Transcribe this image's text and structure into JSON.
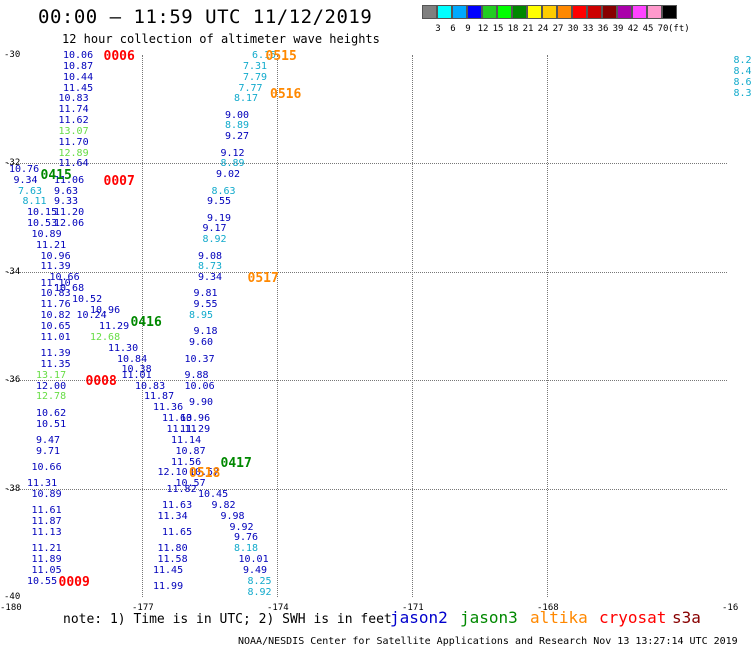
{
  "title": "00:00 – 11:59 UTC 11/12/2019",
  "subtitle": "12 hour collection of altimeter wave heights",
  "colorbar": {
    "colors": [
      "#808080",
      "#00ffff",
      "#00aaff",
      "#0000ff",
      "#22cc22",
      "#00ff00",
      "#008800",
      "#ffff00",
      "#ffcc00",
      "#ff8800",
      "#ff0000",
      "#cc0000",
      "#880000",
      "#aa00aa",
      "#ff44ff",
      "#ff99cc",
      "#000000"
    ],
    "labels": [
      "3",
      "6",
      "9",
      "12",
      "15",
      "18",
      "21",
      "24",
      "27",
      "30",
      "33",
      "36",
      "39",
      "42",
      "45",
      "70",
      "(ft)"
    ]
  },
  "axes": {
    "lat_ticks": [
      "-30",
      "-32",
      "-34",
      "-36",
      "-38",
      "-40"
    ],
    "lon_ticks": [
      "-180",
      "-177",
      "-174",
      "-171",
      "-168",
      "-16"
    ]
  },
  "note": "note:  1) Time is in UTC;  2) SWH is in feet",
  "legend": [
    {
      "name": "jason2",
      "color": "#0000cc"
    },
    {
      "name": "jason3",
      "color": "#008800"
    },
    {
      "name": "altika",
      "color": "#ff8800"
    },
    {
      "name": "cryosat",
      "color": "#ff0000"
    },
    {
      "name": "s3a",
      "color": "#880000"
    }
  ],
  "credit": "NOAA/NESDIS Center for Satellite Applications and Research    Nov 13 13:27:14 UTC 2019",
  "observations": [
    {
      "lon": -178.8,
      "lat": -30.0,
      "v": "10.06"
    },
    {
      "lon": -178.8,
      "lat": -30.2,
      "v": "10.87"
    },
    {
      "lon": -178.8,
      "lat": -30.4,
      "v": "10.44"
    },
    {
      "lon": -178.8,
      "lat": -30.6,
      "v": "11.45"
    },
    {
      "lon": -178.9,
      "lat": -30.8,
      "v": "10.83"
    },
    {
      "lon": -178.9,
      "lat": -31.0,
      "v": "11.74"
    },
    {
      "lon": -178.9,
      "lat": -31.2,
      "v": "11.62"
    },
    {
      "lon": -178.9,
      "lat": -31.4,
      "v": "13.07"
    },
    {
      "lon": -178.9,
      "lat": -31.6,
      "v": "11.70"
    },
    {
      "lon": -178.9,
      "lat": -31.8,
      "v": "12.89"
    },
    {
      "lon": -178.9,
      "lat": -32.0,
      "v": "11.64"
    },
    {
      "lon": -180.0,
      "lat": -32.1,
      "v": "10.76"
    },
    {
      "lon": -179.9,
      "lat": -32.3,
      "v": "9.34"
    },
    {
      "lon": -179.0,
      "lat": -32.3,
      "v": "11.06"
    },
    {
      "lon": -179.8,
      "lat": -32.5,
      "v": "7.63"
    },
    {
      "lon": -179.0,
      "lat": -32.5,
      "v": "9.63"
    },
    {
      "lon": -179.7,
      "lat": -32.7,
      "v": "8.11"
    },
    {
      "lon": -179.0,
      "lat": -32.7,
      "v": "9.33"
    },
    {
      "lon": -179.6,
      "lat": -32.9,
      "v": "10.15"
    },
    {
      "lon": -179.0,
      "lat": -32.9,
      "v": "11.20"
    },
    {
      "lon": -179.6,
      "lat": -33.1,
      "v": "10.53"
    },
    {
      "lon": -179.0,
      "lat": -33.1,
      "v": "12.06"
    },
    {
      "lon": -179.5,
      "lat": -33.3,
      "v": "10.89"
    },
    {
      "lon": -179.4,
      "lat": -33.5,
      "v": "11.21"
    },
    {
      "lon": -179.3,
      "lat": -33.7,
      "v": "10.96"
    },
    {
      "lon": -179.3,
      "lat": -33.9,
      "v": "11.39"
    },
    {
      "lon": -179.1,
      "lat": -34.1,
      "v": "10.66"
    },
    {
      "lon": -179.3,
      "lat": -34.2,
      "v": "11.10"
    },
    {
      "lon": -179.0,
      "lat": -34.3,
      "v": "10.68"
    },
    {
      "lon": -179.3,
      "lat": -34.4,
      "v": "10.83"
    },
    {
      "lon": -178.6,
      "lat": -34.5,
      "v": "10.52"
    },
    {
      "lon": -179.3,
      "lat": -34.6,
      "v": "11.76"
    },
    {
      "lon": -178.2,
      "lat": -34.7,
      "v": "10.96"
    },
    {
      "lon": -179.3,
      "lat": -34.8,
      "v": "10.82"
    },
    {
      "lon": -178.5,
      "lat": -34.8,
      "v": "10.24"
    },
    {
      "lon": -179.3,
      "lat": -35.0,
      "v": "10.65"
    },
    {
      "lon": -178.0,
      "lat": -35.0,
      "v": "11.29"
    },
    {
      "lon": -179.3,
      "lat": -35.2,
      "v": "11.01"
    },
    {
      "lon": -178.2,
      "lat": -35.2,
      "v": "12.68"
    },
    {
      "lon": -177.8,
      "lat": -35.4,
      "v": "11.30"
    },
    {
      "lon": -179.3,
      "lat": -35.5,
      "v": "11.39"
    },
    {
      "lon": -177.6,
      "lat": -35.6,
      "v": "10.84"
    },
    {
      "lon": -179.3,
      "lat": -35.7,
      "v": "11.35"
    },
    {
      "lon": -177.5,
      "lat": -35.8,
      "v": "10.38"
    },
    {
      "lon": -179.4,
      "lat": -35.9,
      "v": "13.17"
    },
    {
      "lon": -177.5,
      "lat": -35.9,
      "v": "11.01"
    },
    {
      "lon": -179.4,
      "lat": -36.1,
      "v": "12.00"
    },
    {
      "lon": -177.2,
      "lat": -36.1,
      "v": "10.83"
    },
    {
      "lon": -177.0,
      "lat": -36.3,
      "v": "11.87"
    },
    {
      "lon": -179.4,
      "lat": -36.3,
      "v": "12.78"
    },
    {
      "lon": -176.8,
      "lat": -36.5,
      "v": "11.36"
    },
    {
      "lon": -179.4,
      "lat": -36.6,
      "v": "10.62"
    },
    {
      "lon": -176.6,
      "lat": -36.7,
      "v": "11.63"
    },
    {
      "lon": -179.4,
      "lat": -36.8,
      "v": "10.51"
    },
    {
      "lon": -176.5,
      "lat": -36.9,
      "v": "11.11"
    },
    {
      "lon": -176.2,
      "lat": -36.9,
      "v": "11.29"
    },
    {
      "lon": -179.4,
      "lat": -37.1,
      "v": "9.47"
    },
    {
      "lon": -176.4,
      "lat": -37.1,
      "v": "11.14"
    },
    {
      "lon": -179.4,
      "lat": -37.3,
      "v": "9.71"
    },
    {
      "lon": -176.3,
      "lat": -37.3,
      "v": "10.87"
    },
    {
      "lon": -179.5,
      "lat": -37.6,
      "v": "10.66"
    },
    {
      "lon": -176.4,
      "lat": -37.5,
      "v": "11.56"
    },
    {
      "lon": -176.7,
      "lat": -37.7,
      "v": "12.10"
    },
    {
      "lon": -176.0,
      "lat": -37.7,
      "v": "10.57"
    },
    {
      "lon": -179.6,
      "lat": -37.9,
      "v": "11.31"
    },
    {
      "lon": -176.3,
      "lat": -37.9,
      "v": "10.57"
    },
    {
      "lon": -179.5,
      "lat": -38.1,
      "v": "10.89"
    },
    {
      "lon": -176.5,
      "lat": -38.0,
      "v": "11.82"
    },
    {
      "lon": -175.8,
      "lat": -38.1,
      "v": "10.45"
    },
    {
      "lon": -179.5,
      "lat": -38.4,
      "v": "11.61"
    },
    {
      "lon": -176.6,
      "lat": -38.3,
      "v": "11.63"
    },
    {
      "lon": -175.5,
      "lat": -38.3,
      "v": "9.82"
    },
    {
      "lon": -179.5,
      "lat": -38.6,
      "v": "11.87"
    },
    {
      "lon": -176.7,
      "lat": -38.5,
      "v": "11.34"
    },
    {
      "lon": -175.3,
      "lat": -38.5,
      "v": "9.98"
    },
    {
      "lon": -179.5,
      "lat": -38.8,
      "v": "11.13"
    },
    {
      "lon": -175.1,
      "lat": -38.7,
      "v": "9.92"
    },
    {
      "lon": -176.6,
      "lat": -38.8,
      "v": "11.65"
    },
    {
      "lon": -175.0,
      "lat": -38.9,
      "v": "9.76"
    },
    {
      "lon": -179.5,
      "lat": -39.1,
      "v": "11.21"
    },
    {
      "lon": -176.7,
      "lat": -39.1,
      "v": "11.80"
    },
    {
      "lon": -175.0,
      "lat": -39.1,
      "v": "8.18"
    },
    {
      "lon": -179.5,
      "lat": -39.3,
      "v": "11.89"
    },
    {
      "lon": -176.7,
      "lat": -39.3,
      "v": "11.58"
    },
    {
      "lon": -174.9,
      "lat": -39.3,
      "v": "10.01"
    },
    {
      "lon": -179.5,
      "lat": -39.5,
      "v": "11.05"
    },
    {
      "lon": -176.8,
      "lat": -39.5,
      "v": "11.45"
    },
    {
      "lon": -174.8,
      "lat": -39.5,
      "v": "9.49"
    },
    {
      "lon": -179.6,
      "lat": -39.7,
      "v": "10.55"
    },
    {
      "lon": -176.8,
      "lat": -39.8,
      "v": "11.99"
    },
    {
      "lon": -174.7,
      "lat": -39.7,
      "v": "8.25"
    },
    {
      "lon": -174.7,
      "lat": -39.9,
      "v": "8.92"
    },
    {
      "lon": -174.6,
      "lat": -30.0,
      "v": "6.15"
    },
    {
      "lon": -174.8,
      "lat": -30.2,
      "v": "7.31"
    },
    {
      "lon": -174.8,
      "lat": -30.4,
      "v": "7.79"
    },
    {
      "lon": -174.9,
      "lat": -30.6,
      "v": "7.77"
    },
    {
      "lon": -175.0,
      "lat": -30.8,
      "v": "8.17"
    },
    {
      "lon": -175.2,
      "lat": -31.1,
      "v": "9.00"
    },
    {
      "lon": -175.2,
      "lat": -31.3,
      "v": "8.89"
    },
    {
      "lon": -175.2,
      "lat": -31.5,
      "v": "9.27"
    },
    {
      "lon": -175.3,
      "lat": -31.8,
      "v": "9.12"
    },
    {
      "lon": -175.3,
      "lat": -32.0,
      "v": "8.89"
    },
    {
      "lon": -175.4,
      "lat": -32.2,
      "v": "9.02"
    },
    {
      "lon": -175.5,
      "lat": -32.5,
      "v": "8.63"
    },
    {
      "lon": -175.6,
      "lat": -32.7,
      "v": "9.55"
    },
    {
      "lon": -175.6,
      "lat": -33.0,
      "v": "9.19"
    },
    {
      "lon": -175.7,
      "lat": -33.2,
      "v": "9.17"
    },
    {
      "lon": -175.7,
      "lat": -33.4,
      "v": "8.92"
    },
    {
      "lon": -175.8,
      "lat": -33.7,
      "v": "9.08"
    },
    {
      "lon": -175.8,
      "lat": -33.9,
      "v": "8.73"
    },
    {
      "lon": -175.8,
      "lat": -34.1,
      "v": "9.34"
    },
    {
      "lon": -175.9,
      "lat": -34.4,
      "v": "9.81"
    },
    {
      "lon": -175.9,
      "lat": -34.6,
      "v": "9.55"
    },
    {
      "lon": -176.0,
      "lat": -34.8,
      "v": "8.95"
    },
    {
      "lon": -175.9,
      "lat": -35.1,
      "v": "9.18"
    },
    {
      "lon": -176.0,
      "lat": -35.3,
      "v": "9.60"
    },
    {
      "lon": -176.1,
      "lat": -35.6,
      "v": "10.37"
    },
    {
      "lon": -176.1,
      "lat": -35.9,
      "v": "9.88"
    },
    {
      "lon": -176.1,
      "lat": -36.1,
      "v": "10.06"
    },
    {
      "lon": -176.0,
      "lat": -36.4,
      "v": "9.90"
    },
    {
      "lon": -176.2,
      "lat": -36.7,
      "v": "10.96"
    },
    {
      "lon": -163.9,
      "lat": -30.1,
      "v": "8.2"
    },
    {
      "lon": -163.9,
      "lat": -30.3,
      "v": "8.4"
    },
    {
      "lon": -163.9,
      "lat": -30.5,
      "v": "8.6"
    },
    {
      "lon": -163.9,
      "lat": -30.7,
      "v": "8.3"
    }
  ],
  "track_labels": [
    {
      "lon": -177.9,
      "lat": -30.0,
      "t": "0006",
      "sat": "cryosat"
    },
    {
      "lon": -174.3,
      "lat": -30.0,
      "t": "0515",
      "sat": "altika"
    },
    {
      "lon": -174.2,
      "lat": -30.7,
      "t": "0516",
      "sat": "altika"
    },
    {
      "lon": -179.3,
      "lat": -32.2,
      "t": "0415",
      "sat": "jason3"
    },
    {
      "lon": -177.9,
      "lat": -32.3,
      "t": "0007",
      "sat": "cryosat"
    },
    {
      "lon": -174.7,
      "lat": -34.1,
      "t": "0517",
      "sat": "altika"
    },
    {
      "lon": -177.3,
      "lat": -34.9,
      "t": "0416",
      "sat": "jason3"
    },
    {
      "lon": -178.3,
      "lat": -36.0,
      "t": "0008",
      "sat": "cryosat"
    },
    {
      "lon": -175.3,
      "lat": -37.5,
      "t": "0417",
      "sat": "jason3"
    },
    {
      "lon": -176.0,
      "lat": -37.7,
      "t": "0518",
      "sat": "altika"
    },
    {
      "lon": -178.9,
      "lat": -39.7,
      "t": "0009",
      "sat": "cryosat"
    }
  ]
}
